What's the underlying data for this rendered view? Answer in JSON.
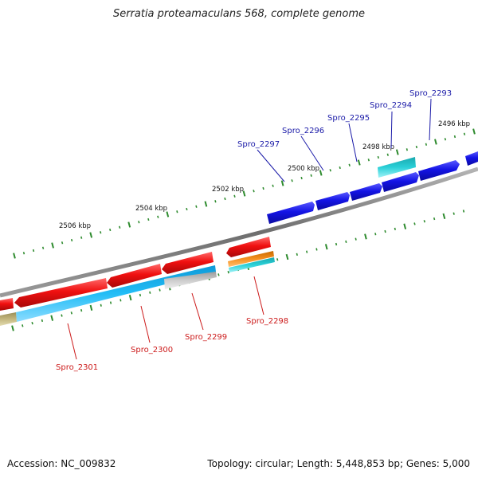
{
  "title": "Serratia proteamaculans 568, complete genome",
  "footer": {
    "accession": "Accession: NC_009832",
    "summary": "Topology: circular; Length: 5,448,853 bp; Genes: 5,000"
  },
  "colors": {
    "forward_cds": "#1010dd",
    "reverse_cds": "#ee1111",
    "forward_label": "#1a1aa8",
    "reverse_label": "#cc1a1a",
    "backbone": "#8a8a8a",
    "tick": "#2e8b2e",
    "cyan_feature": "#2ac7cf",
    "skyblue_feature": "#22b6f0",
    "gray_feature": "#c4c4c4",
    "orange_feature": "#f08c1a",
    "khaki_feature": "#bfb27a"
  },
  "scale_labels": [
    "2496 kbp",
    "2498 kbp",
    "2500 kbp",
    "2502 kbp",
    "2504 kbp",
    "2506 kbp"
  ],
  "forward_genes": [
    "Spro_2293",
    "Spro_2294",
    "Spro_2295",
    "Spro_2296",
    "Spro_2297"
  ],
  "reverse_genes": [
    "Spro_2298",
    "Spro_2299",
    "Spro_2300",
    "Spro_2301"
  ]
}
